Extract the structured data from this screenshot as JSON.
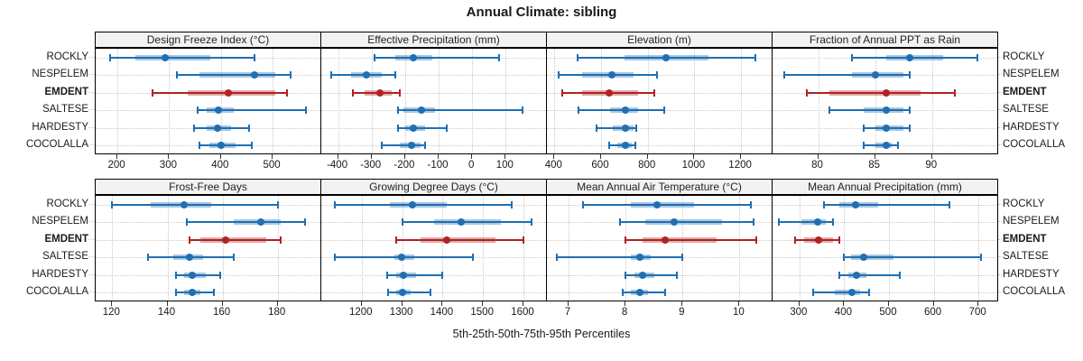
{
  "title": "Annual Climate: sibling",
  "xlabel": "5th-25th-50th-75th-95th Percentiles",
  "colors": {
    "default_series": "#1f6fb2",
    "highlight_series": "#b22222",
    "grid": "#c9c9c9",
    "strip_bg": "#f2f2f2",
    "panel_border": "#000000"
  },
  "sites": [
    {
      "name": "ROCKLY",
      "highlight": false
    },
    {
      "name": "NESPELEM",
      "highlight": false
    },
    {
      "name": "EMDENT",
      "highlight": true
    },
    {
      "name": "SALTESE",
      "highlight": false
    },
    {
      "name": "HARDESTY",
      "highlight": false
    },
    {
      "name": "COCOLALLA",
      "highlight": false
    }
  ],
  "chart_data": {
    "type": "scatter",
    "subtype": "percentile-interval-dotplot",
    "percentile_levels": [
      5,
      25,
      50,
      75,
      95
    ],
    "legend_position": "none",
    "grid": "dotted",
    "panels": [
      {
        "title": "Design Freeze Index (°C)",
        "row": 0,
        "col": 0,
        "xlim": [
          158,
          594
        ],
        "ticks": [
          200,
          300,
          400,
          500
        ],
        "series": [
          {
            "site": "ROCKLY",
            "values": [
              185,
              235,
              293,
              380,
              465
            ]
          },
          {
            "site": "NESPELEM",
            "values": [
              315,
              358,
              465,
              505,
              535
            ]
          },
          {
            "site": "EMDENT",
            "values": [
              268,
              335,
              415,
              505,
              528
            ]
          },
          {
            "site": "SALTESE",
            "values": [
              355,
              372,
              395,
              425,
              565
            ]
          },
          {
            "site": "HARDESTY",
            "values": [
              348,
              372,
              393,
              420,
              455
            ]
          },
          {
            "site": "COCOLALLA",
            "values": [
              358,
              378,
              400,
              428,
              460
            ]
          }
        ]
      },
      {
        "title": "Effective Precipitation (mm)",
        "row": 0,
        "col": 1,
        "xlim": [
          -450,
          223
        ],
        "ticks": [
          -400,
          -300,
          -200,
          -100,
          0,
          100
        ],
        "series": [
          {
            "site": "ROCKLY",
            "values": [
              -290,
              -230,
              -175,
              -120,
              80
            ]
          },
          {
            "site": "NESPELEM",
            "values": [
              -420,
              -360,
              -315,
              -270,
              -230
            ]
          },
          {
            "site": "EMDENT",
            "values": [
              -355,
              -320,
              -275,
              -240,
              -215
            ]
          },
          {
            "site": "SALTESE",
            "values": [
              -220,
              -205,
              -150,
              -110,
              150
            ]
          },
          {
            "site": "HARDESTY",
            "values": [
              -220,
              -200,
              -175,
              -140,
              -75
            ]
          },
          {
            "site": "COCOLALLA",
            "values": [
              -270,
              -215,
              -180,
              -155,
              -140
            ]
          }
        ]
      },
      {
        "title": "Elevation (m)",
        "row": 0,
        "col": 2,
        "xlim": [
          368,
          1335
        ],
        "ticks": [
          400,
          600,
          800,
          1000,
          1200
        ],
        "series": [
          {
            "site": "ROCKLY",
            "values": [
              500,
              700,
              880,
              1060,
              1260
            ]
          },
          {
            "site": "NESPELEM",
            "values": [
              420,
              520,
              645,
              740,
              840
            ]
          },
          {
            "site": "EMDENT",
            "values": [
              435,
              520,
              635,
              760,
              830
            ]
          },
          {
            "site": "SALTESE",
            "values": [
              505,
              640,
              705,
              760,
              870
            ]
          },
          {
            "site": "HARDESTY",
            "values": [
              580,
              650,
              705,
              740,
              750
            ]
          },
          {
            "site": "COCOLALLA",
            "values": [
              635,
              670,
              705,
              730,
              745
            ]
          }
        ]
      },
      {
        "title": "Fraction of Annual PPT as Rain",
        "row": 0,
        "col": 3,
        "xlim": [
          76,
          95.8
        ],
        "ticks": [
          80,
          85,
          90
        ],
        "series": [
          {
            "site": "ROCKLY",
            "values": [
              83,
              86,
              88,
              91,
              94
            ]
          },
          {
            "site": "NESPELEM",
            "values": [
              77,
              83,
              85,
              87.5,
              88
            ]
          },
          {
            "site": "EMDENT",
            "values": [
              79,
              81,
              86,
              89,
              92
            ]
          },
          {
            "site": "SALTESE",
            "values": [
              81,
              84,
              86,
              87.5,
              88
            ]
          },
          {
            "site": "HARDESTY",
            "values": [
              84,
              85,
              86,
              87.5,
              88
            ]
          },
          {
            "site": "COCOLALLA",
            "values": [
              84,
              85,
              86,
              86.5,
              87
            ]
          }
        ]
      },
      {
        "title": "Frost-Free Days",
        "row": 1,
        "col": 0,
        "xlim": [
          114,
          195.8
        ],
        "ticks": [
          120,
          140,
          160,
          180
        ],
        "series": [
          {
            "site": "ROCKLY",
            "values": [
              120,
              134,
              146,
              156,
              180
            ]
          },
          {
            "site": "NESPELEM",
            "values": [
              147,
              164,
              174,
              181,
              190
            ]
          },
          {
            "site": "EMDENT",
            "values": [
              148,
              152,
              161,
              176,
              181
            ]
          },
          {
            "site": "SALTESE",
            "values": [
              133,
              142,
              148,
              153,
              164
            ]
          },
          {
            "site": "HARDESTY",
            "values": [
              143,
              146,
              149,
              154,
              159
            ]
          },
          {
            "site": "COCOLALLA",
            "values": [
              143,
              146,
              149,
              152,
              157
            ]
          }
        ]
      },
      {
        "title": "Growing Degree Days (°C)",
        "row": 1,
        "col": 1,
        "xlim": [
          1100,
          1658
        ],
        "ticks": [
          1200,
          1300,
          1400,
          1500,
          1600
        ],
        "series": [
          {
            "site": "ROCKLY",
            "values": [
              1133,
              1270,
              1325,
              1410,
              1570
            ]
          },
          {
            "site": "NESPELEM",
            "values": [
              1300,
              1380,
              1445,
              1545,
              1620
            ]
          },
          {
            "site": "EMDENT",
            "values": [
              1285,
              1345,
              1410,
              1530,
              1600
            ]
          },
          {
            "site": "SALTESE",
            "values": [
              1133,
              1280,
              1298,
              1330,
              1475
            ]
          },
          {
            "site": "HARDESTY",
            "values": [
              1262,
              1285,
              1303,
              1335,
              1398
            ]
          },
          {
            "site": "COCOLALLA",
            "values": [
              1265,
              1285,
              1300,
              1320,
              1370
            ]
          }
        ]
      },
      {
        "title": "Mean Annual Air Temperature (°C)",
        "row": 1,
        "col": 2,
        "xlim": [
          6.62,
          10.58
        ],
        "ticks": [
          7,
          8,
          9,
          10
        ],
        "series": [
          {
            "site": "ROCKLY",
            "values": [
              7.25,
              8.1,
              8.55,
              9.2,
              10.2
            ]
          },
          {
            "site": "NESPELEM",
            "values": [
              7.9,
              8.35,
              8.85,
              9.7,
              10.25
            ]
          },
          {
            "site": "EMDENT",
            "values": [
              8.0,
              8.3,
              8.7,
              9.6,
              10.3
            ]
          },
          {
            "site": "SALTESE",
            "values": [
              6.8,
              8.1,
              8.25,
              8.45,
              9.0
            ]
          },
          {
            "site": "HARDESTY",
            "values": [
              8.0,
              8.15,
              8.3,
              8.5,
              8.9
            ]
          },
          {
            "site": "COCOLALLA",
            "values": [
              7.95,
              8.1,
              8.25,
              8.4,
              8.7
            ]
          }
        ]
      },
      {
        "title": "Mean Annual Precipitation (mm)",
        "row": 1,
        "col": 3,
        "xlim": [
          240,
          744
        ],
        "ticks": [
          300,
          400,
          500,
          600,
          700
        ],
        "series": [
          {
            "site": "ROCKLY",
            "values": [
              355,
              390,
              425,
              475,
              635
            ]
          },
          {
            "site": "NESPELEM",
            "values": [
              255,
              305,
              340,
              360,
              375
            ]
          },
          {
            "site": "EMDENT",
            "values": [
              290,
              310,
              343,
              375,
              390
            ]
          },
          {
            "site": "SALTESE",
            "values": [
              400,
              415,
              443,
              510,
              705
            ]
          },
          {
            "site": "HARDESTY",
            "values": [
              390,
              410,
              428,
              450,
              525
            ]
          },
          {
            "site": "COCOLALLA",
            "values": [
              330,
              380,
              418,
              435,
              455
            ]
          }
        ]
      }
    ]
  }
}
